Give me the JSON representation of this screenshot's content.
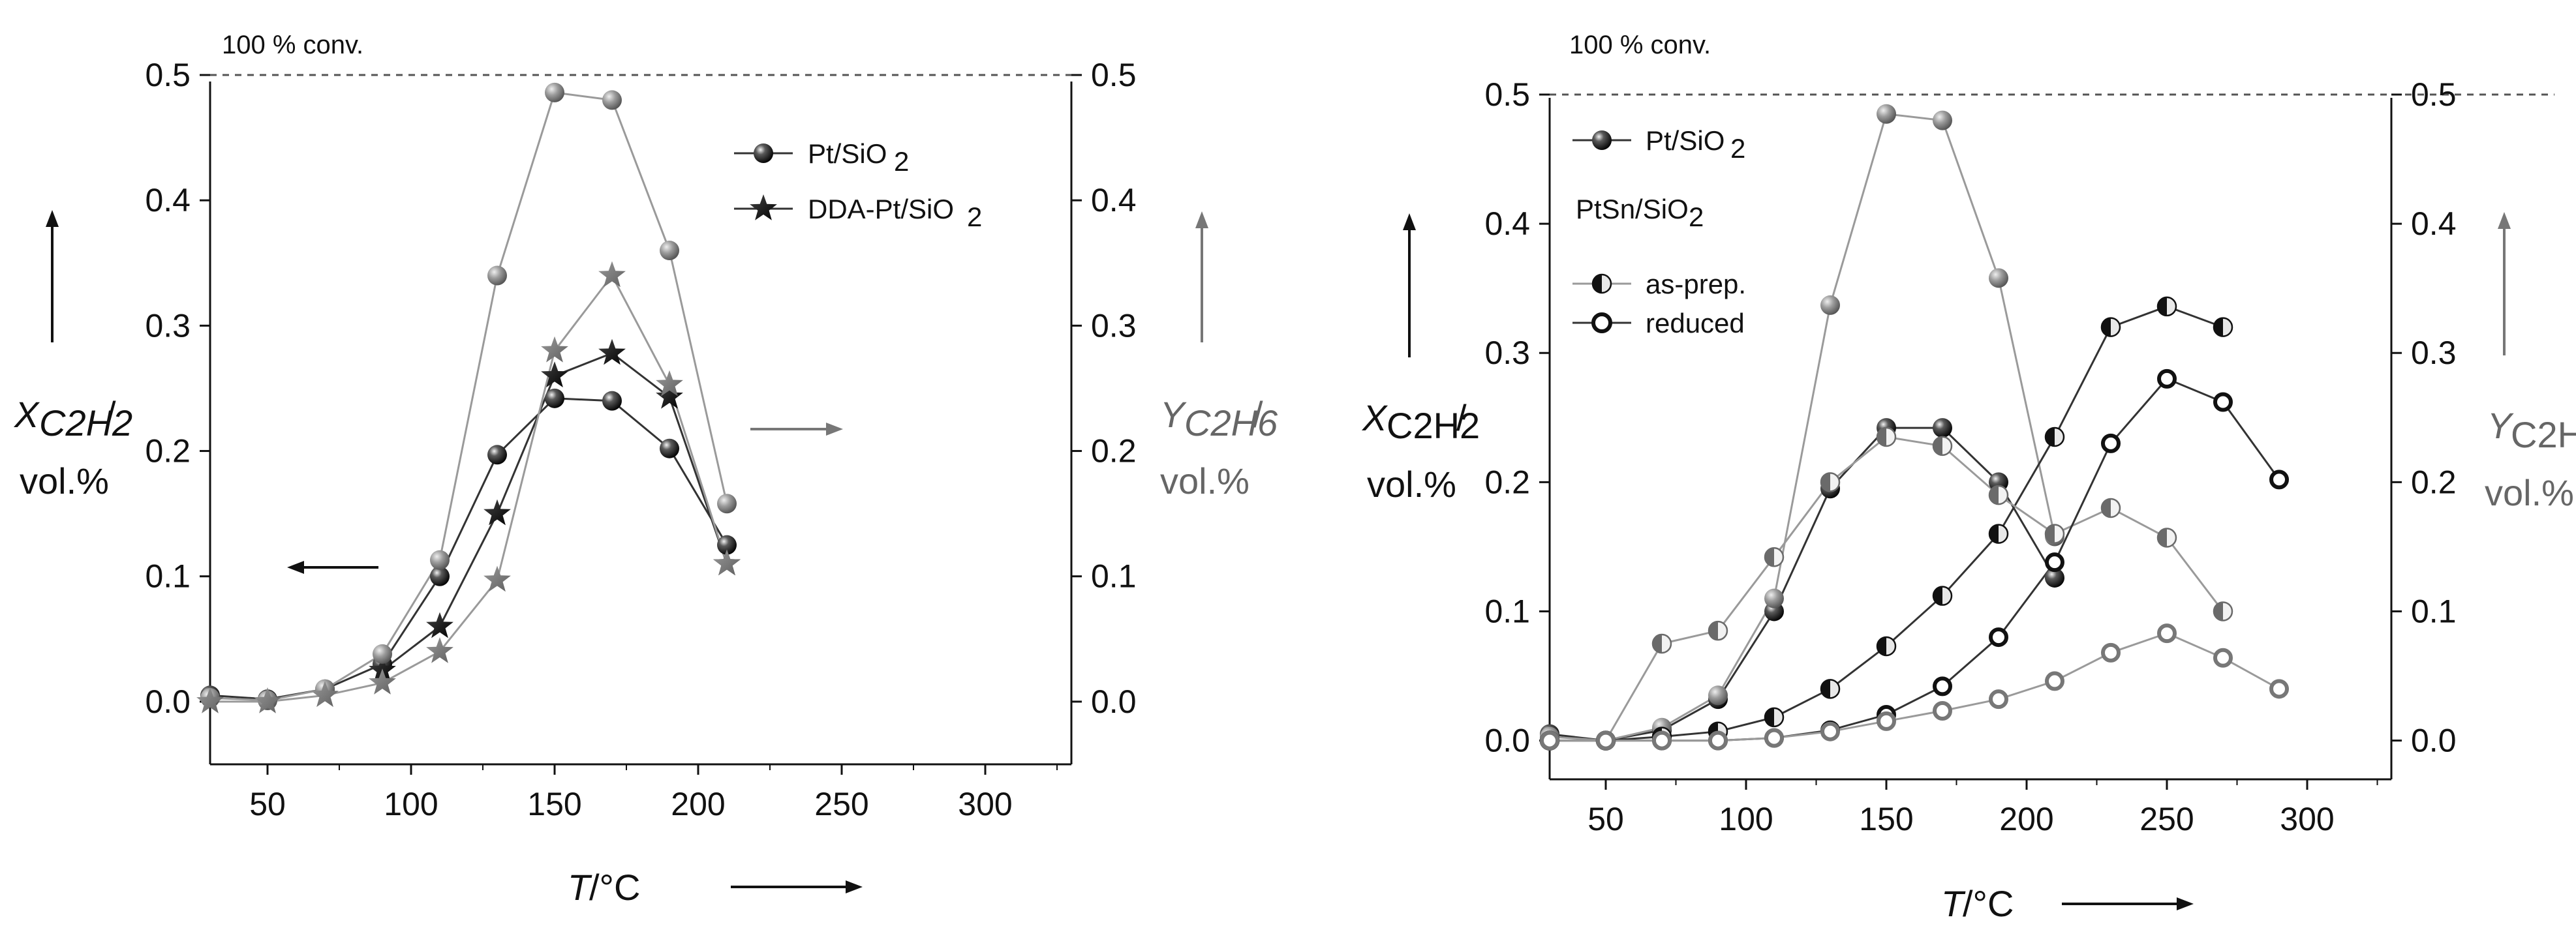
{
  "colors": {
    "axis": "#111111",
    "black_series": "#1a1a1a",
    "gray_series": "#777777",
    "line_black": "#333333",
    "line_gray": "#9a9a9a",
    "dashed": "#555555"
  },
  "chart_data": [
    {
      "type": "line",
      "note": "100 % conv.",
      "xlabel_italic": "T",
      "xlabel_unit": "/°C",
      "xlim": [
        30,
        330
      ],
      "xticks": [
        "50",
        "100",
        "150",
        "200",
        "250",
        "300"
      ],
      "ylim_left": [
        -0.05,
        0.5
      ],
      "ylim_right": [
        -0.05,
        0.5
      ],
      "yticks_left": [
        "0.0",
        "0.1",
        "0.2",
        "0.3",
        "0.4",
        "0.5"
      ],
      "yticks_right": [
        "0.0",
        "0.1",
        "0.2",
        "0.3",
        "0.4",
        "0.5"
      ],
      "ylabel_left": {
        "main": "X",
        "sub": "C2H2",
        "tail": "/",
        "unit": "vol.%"
      },
      "ylabel_right": {
        "main": "Y",
        "sub": "C2H6",
        "tail": "/",
        "unit": "vol.%"
      },
      "legend": [
        {
          "label": "Pt/SiO",
          "sub": "2",
          "marker": "sphere-black"
        },
        {
          "label": "DDA-Pt/SiO",
          "sub": "2",
          "marker": "star-black"
        }
      ],
      "series": [
        {
          "name": "Pt/SiO2 conversion",
          "axis": "left",
          "marker": "sphere-black",
          "x": [
            30,
            50,
            70,
            90,
            110,
            130,
            150,
            170,
            190,
            210
          ],
          "values": [
            0.005,
            0.002,
            0.01,
            0.03,
            0.1,
            0.197,
            0.242,
            0.24,
            0.202,
            0.125
          ]
        },
        {
          "name": "DDA-Pt/SiO2 conversion",
          "axis": "left",
          "marker": "star-black",
          "x": [
            90,
            110,
            130,
            150,
            170,
            190,
            210
          ],
          "values": [
            0.025,
            0.06,
            0.15,
            0.26,
            0.278,
            0.243,
            0.11
          ]
        },
        {
          "name": "Pt/SiO2 ethane yield",
          "axis": "right",
          "marker": "sphere-gray",
          "x": [
            30,
            50,
            70,
            90,
            110,
            130,
            150,
            170,
            190,
            210
          ],
          "values": [
            0.003,
            0.001,
            0.01,
            0.038,
            0.113,
            0.34,
            0.486,
            0.48,
            0.36,
            0.158
          ]
        },
        {
          "name": "DDA-Pt/SiO2 ethane yield",
          "axis": "right",
          "marker": "star-gray",
          "x": [
            30,
            50,
            70,
            90,
            110,
            130,
            150,
            170,
            190,
            210
          ],
          "values": [
            0.0,
            0.0,
            0.005,
            0.015,
            0.04,
            0.097,
            0.28,
            0.34,
            0.253,
            0.11
          ]
        }
      ]
    },
    {
      "type": "line",
      "note": "100 % conv.",
      "xlabel_italic": "T",
      "xlabel_unit": "/°C",
      "xlim": [
        30,
        330
      ],
      "xticks": [
        "50",
        "100",
        "150",
        "200",
        "250",
        "300"
      ],
      "ylim_left": [
        -0.03,
        0.5
      ],
      "ylim_right": [
        -0.03,
        0.5
      ],
      "yticks_left": [
        "0.0",
        "0.1",
        "0.2",
        "0.3",
        "0.4",
        "0.5"
      ],
      "yticks_right": [
        "0.0",
        "0.1",
        "0.2",
        "0.3",
        "0.4",
        "0.5"
      ],
      "ylabel_left": {
        "main": "X",
        "sub": "C2H2",
        "tail": "/",
        "unit": "vol.%"
      },
      "ylabel_right": {
        "main": "Y",
        "sub": "C2H",
        "tail": "",
        "unit": "vol.%"
      },
      "legend_title": "PtSn/SiO",
      "legend_title_sub": "2",
      "legend": [
        {
          "label": "Pt/SiO",
          "sub": "2",
          "marker": "sphere-black"
        },
        {
          "label": "as-prep.",
          "sub": "",
          "marker": "half-black"
        },
        {
          "label": "reduced",
          "sub": "",
          "marker": "ring-black"
        }
      ],
      "series": [
        {
          "name": "Pt/SiO2 conversion",
          "axis": "left",
          "marker": "sphere-black",
          "x": [
            30,
            50,
            70,
            90,
            110,
            130,
            150,
            170,
            190,
            210
          ],
          "values": [
            0.005,
            0.0,
            0.008,
            0.032,
            0.1,
            0.195,
            0.242,
            0.242,
            0.2,
            0.126
          ]
        },
        {
          "name": "Pt/SiO2 ethane yield",
          "axis": "right",
          "marker": "sphere-gray",
          "x": [
            30,
            50,
            70,
            90,
            110,
            130,
            150,
            170,
            190,
            210
          ],
          "values": [
            0.003,
            0.0,
            0.01,
            0.035,
            0.11,
            0.337,
            0.485,
            0.48,
            0.358,
            0.158
          ]
        },
        {
          "name": "as-prep. conversion",
          "axis": "left",
          "marker": "half-black",
          "x": [
            30,
            50,
            70,
            90,
            110,
            130,
            150,
            170,
            190,
            210,
            230,
            250,
            270
          ],
          "values": [
            0.0,
            0.0,
            0.003,
            0.007,
            0.018,
            0.04,
            0.073,
            0.112,
            0.16,
            0.235,
            0.32,
            0.336,
            0.32
          ]
        },
        {
          "name": "as-prep. ethane yield",
          "axis": "right",
          "marker": "half-gray",
          "x": [
            30,
            50,
            70,
            90,
            110,
            130,
            150,
            170,
            190,
            210,
            230,
            250,
            270
          ],
          "values": [
            0.0,
            0.0,
            0.075,
            0.085,
            0.142,
            0.2,
            0.235,
            0.228,
            0.19,
            0.16,
            0.18,
            0.157,
            0.1
          ]
        },
        {
          "name": "reduced conversion",
          "axis": "left",
          "marker": "ring-black",
          "x": [
            30,
            50,
            70,
            90,
            110,
            130,
            150,
            170,
            190,
            210,
            230,
            250,
            270,
            290
          ],
          "values": [
            0.0,
            0.0,
            0.0,
            0.0,
            0.002,
            0.008,
            0.02,
            0.042,
            0.08,
            0.138,
            0.23,
            0.28,
            0.262,
            0.202
          ]
        },
        {
          "name": "reduced ethane yield",
          "axis": "right",
          "marker": "ring-gray",
          "x": [
            30,
            50,
            70,
            90,
            110,
            130,
            150,
            170,
            190,
            210,
            230,
            250,
            270,
            290
          ],
          "values": [
            0.0,
            0.0,
            0.0,
            0.0,
            0.002,
            0.007,
            0.015,
            0.023,
            0.032,
            0.046,
            0.068,
            0.083,
            0.064,
            0.04
          ]
        }
      ]
    }
  ]
}
